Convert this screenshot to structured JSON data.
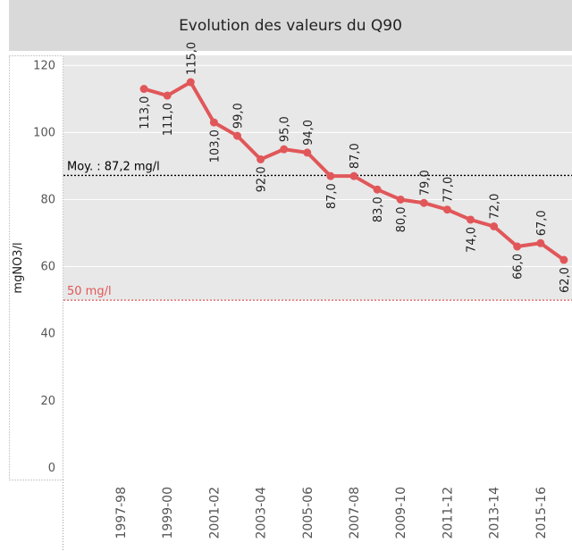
{
  "chart_data": {
    "type": "line",
    "title": "Evolution des valeurs du Q90",
    "y_label": "mgNO3/l",
    "categories": [
      "1997-98",
      null,
      "1999-00",
      null,
      "2001-02",
      null,
      "2003-04",
      null,
      "2005-06",
      null,
      "2007-08",
      null,
      "2009-10",
      null,
      "2011-12",
      null,
      "2013-14",
      null,
      "2015-16",
      null
    ],
    "series": [
      {
        "name": "Q90",
        "color": "#e15759",
        "values": [
          null,
          113,
          111,
          115,
          103,
          99,
          92,
          95,
          94,
          87,
          87,
          83,
          80,
          79,
          77,
          74,
          72,
          66,
          67,
          62
        ],
        "value_labels": [
          null,
          "113,0",
          "111,0",
          "115,0",
          "103,0",
          "99,0",
          "92,0",
          "95,0",
          "94,0",
          "87,0",
          "87,0",
          "83,0",
          "80,0",
          "79,0",
          "77,0",
          "74,0",
          "72,0",
          "66,0",
          "67,0",
          "62,0"
        ]
      }
    ],
    "ylim": [
      -3.5,
      123
    ],
    "yticks": [
      0,
      20,
      40,
      60,
      80,
      100,
      120
    ],
    "reference_lines": [
      {
        "value": 87.2,
        "label": "Moy. : 87,2 mg/l",
        "color": "#000000"
      },
      {
        "value": 50,
        "label": "50 mg/l",
        "color": "#e15759"
      }
    ]
  }
}
